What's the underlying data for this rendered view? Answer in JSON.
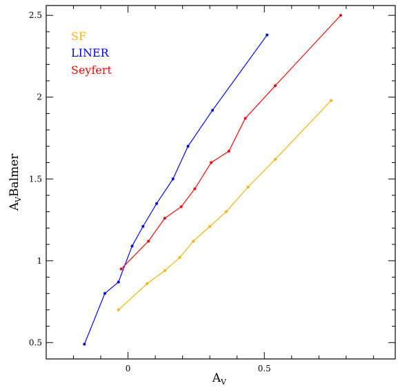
{
  "chart_data": {
    "type": "line",
    "title": "",
    "xlabel": "A",
    "xlabel_sub": "V",
    "ylabel_main": "A",
    "ylabel_sub": "V",
    "ylabel_rest": "Balmer",
    "xlim": [
      -0.3,
      0.98
    ],
    "ylim": [
      0.4,
      2.56
    ],
    "xticks": [
      0,
      0.5
    ],
    "xtick_labels": [
      "0",
      "0.5"
    ],
    "yticks": [
      0.5,
      1,
      1.5,
      2,
      2.5
    ],
    "ytick_labels": [
      "0.5",
      "1",
      "1.5",
      "2",
      "2.5"
    ],
    "legend_position": "top-left",
    "grid": false,
    "series": [
      {
        "name": "SF",
        "color": "#f5b400",
        "x": [
          -0.035,
          0.07,
          0.135,
          0.19,
          0.24,
          0.3,
          0.36,
          0.44,
          0.54,
          0.745
        ],
        "y": [
          0.7,
          0.86,
          0.94,
          1.02,
          1.12,
          1.21,
          1.3,
          1.45,
          1.62,
          1.98
        ]
      },
      {
        "name": "LINER",
        "color": "#0000ff",
        "x": [
          -0.16,
          -0.085,
          -0.035,
          0.015,
          0.055,
          0.105,
          0.165,
          0.22,
          0.31,
          0.51
        ],
        "y": [
          0.49,
          0.8,
          0.87,
          1.09,
          1.21,
          1.35,
          1.5,
          1.7,
          1.92,
          2.38
        ]
      },
      {
        "name": "Seyfert",
        "color": "#ff0000",
        "x": [
          -0.025,
          0.075,
          0.135,
          0.195,
          0.245,
          0.305,
          0.37,
          0.43,
          0.54,
          0.78
        ],
        "y": [
          0.95,
          1.12,
          1.26,
          1.33,
          1.44,
          1.6,
          1.67,
          1.87,
          2.07,
          2.5
        ]
      }
    ]
  }
}
